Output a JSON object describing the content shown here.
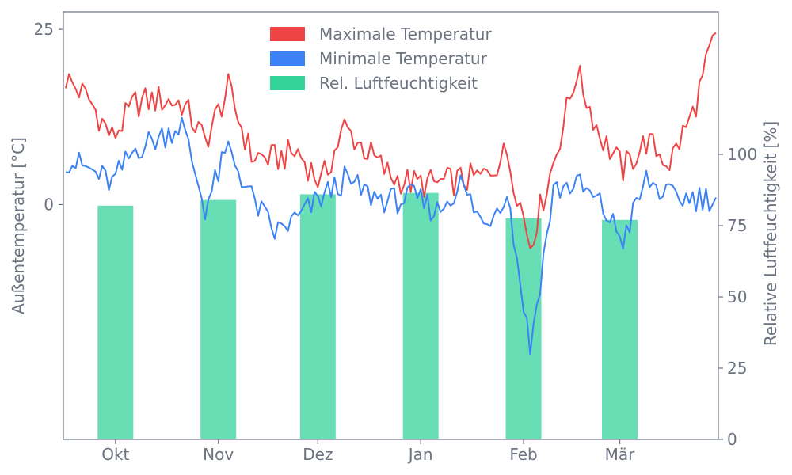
{
  "chart_data": {
    "type": "line+bar",
    "xlabel": "",
    "x_tick_labels": [
      "Okt",
      "Nov",
      "Dez",
      "Jan",
      "Feb",
      "Mär"
    ],
    "left_axis": {
      "label": "Außentemperatur [°C]",
      "ticks": [
        0,
        25
      ],
      "ylim": [
        -33.5,
        27.5
      ]
    },
    "right_axis": {
      "label": "Relative Luftfeuchtigkeit [%]",
      "ticks": [
        0,
        25,
        50,
        75,
        100
      ],
      "ylim": [
        0,
        150
      ]
    },
    "legend": {
      "placement": "top-center",
      "entries": [
        {
          "label": "Maximale Temperatur",
          "color": "#ef4444"
        },
        {
          "label": "Minimale Temperatur",
          "color": "#3b82f6"
        },
        {
          "label": "Rel. Luftfeuchtigkeit",
          "color": "#34d399"
        }
      ]
    },
    "x_start": "2023-09-16",
    "month_ticks": [
      "2023-10-01",
      "2023-11-01",
      "2023-12-01",
      "2024-01-01",
      "2024-02-01",
      "2024-03-01"
    ],
    "max_temp_weekly": [
      {
        "date": "2023-09-16",
        "value": 18.0
      },
      {
        "date": "2023-09-23",
        "value": 15.0
      },
      {
        "date": "2023-09-30",
        "value": 9.5
      },
      {
        "date": "2023-10-07",
        "value": 14.5
      },
      {
        "date": "2023-10-14",
        "value": 15.0
      },
      {
        "date": "2023-10-21",
        "value": 14.5
      },
      {
        "date": "2023-10-28",
        "value": 9.0
      },
      {
        "date": "2023-11-04",
        "value": 16.5
      },
      {
        "date": "2023-11-11",
        "value": 7.0
      },
      {
        "date": "2023-11-18",
        "value": 6.5
      },
      {
        "date": "2023-11-25",
        "value": 7.5
      },
      {
        "date": "2023-12-02",
        "value": 3.0
      },
      {
        "date": "2023-12-09",
        "value": 11.0
      },
      {
        "date": "2023-12-16",
        "value": 7.5
      },
      {
        "date": "2023-12-23",
        "value": 4.0
      },
      {
        "date": "2023-12-30",
        "value": 3.0
      },
      {
        "date": "2024-01-06",
        "value": 3.0
      },
      {
        "date": "2024-01-13",
        "value": 3.5
      },
      {
        "date": "2024-01-20",
        "value": 4.0
      },
      {
        "date": "2024-01-27",
        "value": 7.5
      },
      {
        "date": "2024-02-03",
        "value": -5.5
      },
      {
        "date": "2024-02-10",
        "value": 6.0
      },
      {
        "date": "2024-02-17",
        "value": 19.0
      },
      {
        "date": "2024-02-24",
        "value": 10.0
      },
      {
        "date": "2024-03-02",
        "value": 5.0
      },
      {
        "date": "2024-03-09",
        "value": 9.0
      },
      {
        "date": "2024-03-16",
        "value": 6.0
      },
      {
        "date": "2024-03-23",
        "value": 13.0
      },
      {
        "date": "2024-03-30",
        "value": 24.5
      }
    ],
    "min_temp_weekly": [
      {
        "date": "2023-09-16",
        "value": 6.5
      },
      {
        "date": "2023-09-23",
        "value": 5.0
      },
      {
        "date": "2023-09-30",
        "value": 3.0
      },
      {
        "date": "2023-10-07",
        "value": 8.0
      },
      {
        "date": "2023-10-14",
        "value": 9.5
      },
      {
        "date": "2023-10-21",
        "value": 11.5
      },
      {
        "date": "2023-10-28",
        "value": -0.5
      },
      {
        "date": "2023-11-04",
        "value": 8.0
      },
      {
        "date": "2023-11-11",
        "value": 1.0
      },
      {
        "date": "2023-11-18",
        "value": -4.0
      },
      {
        "date": "2023-11-25",
        "value": -2.0
      },
      {
        "date": "2023-12-02",
        "value": 1.0
      },
      {
        "date": "2023-12-09",
        "value": 3.5
      },
      {
        "date": "2023-12-16",
        "value": 1.5
      },
      {
        "date": "2023-12-23",
        "value": 0.5
      },
      {
        "date": "2023-12-30",
        "value": 1.0
      },
      {
        "date": "2024-01-06",
        "value": -1.0
      },
      {
        "date": "2024-01-13",
        "value": 3.0
      },
      {
        "date": "2024-01-20",
        "value": -3.0
      },
      {
        "date": "2024-01-27",
        "value": 2.0
      },
      {
        "date": "2024-02-03",
        "value": -20.5
      },
      {
        "date": "2024-02-10",
        "value": 2.0
      },
      {
        "date": "2024-02-17",
        "value": 3.0
      },
      {
        "date": "2024-02-24",
        "value": 0.0
      },
      {
        "date": "2024-03-02",
        "value": -5.0
      },
      {
        "date": "2024-03-09",
        "value": 3.5
      },
      {
        "date": "2024-03-16",
        "value": 1.0
      },
      {
        "date": "2024-03-23",
        "value": 1.0
      },
      {
        "date": "2024-03-30",
        "value": 1.0
      }
    ],
    "humidity_monthly": [
      {
        "month": "Okt",
        "value": 82
      },
      {
        "month": "Nov",
        "value": 84
      },
      {
        "month": "Dez",
        "value": 86
      },
      {
        "month": "Jan",
        "value": 86.5
      },
      {
        "month": "Feb",
        "value": 77.5
      },
      {
        "month": "Mär",
        "value": 77
      }
    ],
    "grid": false
  }
}
